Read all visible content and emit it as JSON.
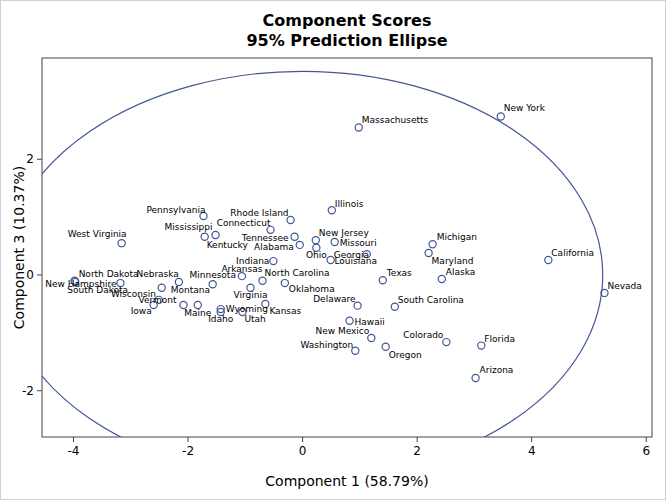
{
  "chart_data": {
    "type": "scatter",
    "title": "Component Scores",
    "subtitle": "95% Prediction Ellipse",
    "x_label": "Component 1 (58.79%)",
    "y_label": "Component 3 (10.37%)",
    "xlim": [
      -4.55,
      6.1
    ],
    "ylim": [
      -2.8,
      3.75
    ],
    "xticks": [
      -4,
      -2,
      0,
      2,
      4,
      6
    ],
    "yticks": [
      -2,
      0,
      2
    ],
    "grid": false,
    "color": "#445694",
    "marker": "circle",
    "ellipse": {
      "center_x": 0,
      "center_y": 0,
      "radius_x": 5.24,
      "radius_y": 3.52
    },
    "point_labels": [
      "New York",
      "Massachusetts",
      "California",
      "Nevada",
      "West Virginia",
      "North Dakota",
      "South Dakota",
      "New Hampshire",
      "Nebraska",
      "Montana",
      "Wisconsin",
      "Iowa",
      "Vermont",
      "Maine",
      "Minnesota",
      "Idaho",
      "Wyoming",
      "Utah",
      "Kansas",
      "Virginia",
      "Arkansas",
      "North Carolina",
      "Oklahoma",
      "Indiana",
      "Kentucky",
      "Mississippi",
      "Pennsylvania",
      "Connecticut",
      "Rhode Island",
      "Tennessee",
      "Alabama",
      "New Jersey",
      "Missouri",
      "Ohio",
      "Illinois",
      "Georgia",
      "Louisiana",
      "Texas",
      "Michigan",
      "Maryland",
      "Alaska",
      "Delaware",
      "Hawaii",
      "South Carolina",
      "New Mexico",
      "Washington",
      "Oregon",
      "Colorado",
      "Florida",
      "Arizona"
    ],
    "x": [
      3.46,
      0.98,
      4.29,
      5.27,
      -3.16,
      -3.98,
      -3.97,
      -3.18,
      -2.16,
      -2.46,
      -2.51,
      -2.6,
      -2.08,
      -1.83,
      -1.57,
      -1.43,
      -1.43,
      -1.05,
      -0.65,
      -0.91,
      -1.06,
      -0.7,
      -0.31,
      -0.51,
      -1.71,
      -1.52,
      -1.73,
      -0.56,
      -0.21,
      -0.14,
      -0.05,
      0.23,
      0.56,
      0.24,
      0.51,
      0.49,
      1.12,
      1.4,
      2.27,
      2.2,
      2.43,
      0.96,
      0.82,
      1.61,
      1.2,
      0.92,
      1.45,
      2.51,
      3.12,
      3.02
    ],
    "values": [
      2.74,
      2.55,
      0.26,
      -0.31,
      0.55,
      -0.1,
      -0.12,
      -0.14,
      -0.12,
      -0.22,
      -0.43,
      -0.52,
      -0.52,
      -0.52,
      -0.16,
      -0.64,
      -0.59,
      -0.64,
      -0.5,
      -0.22,
      -0.02,
      -0.1,
      -0.14,
      0.24,
      0.66,
      0.69,
      1.02,
      0.78,
      0.95,
      0.66,
      0.52,
      0.6,
      0.57,
      0.47,
      1.12,
      0.26,
      0.36,
      -0.09,
      0.53,
      0.38,
      -0.07,
      -0.53,
      -0.79,
      -0.55,
      -1.09,
      -1.31,
      -1.24,
      -1.16,
      -1.22,
      -1.78
    ]
  }
}
